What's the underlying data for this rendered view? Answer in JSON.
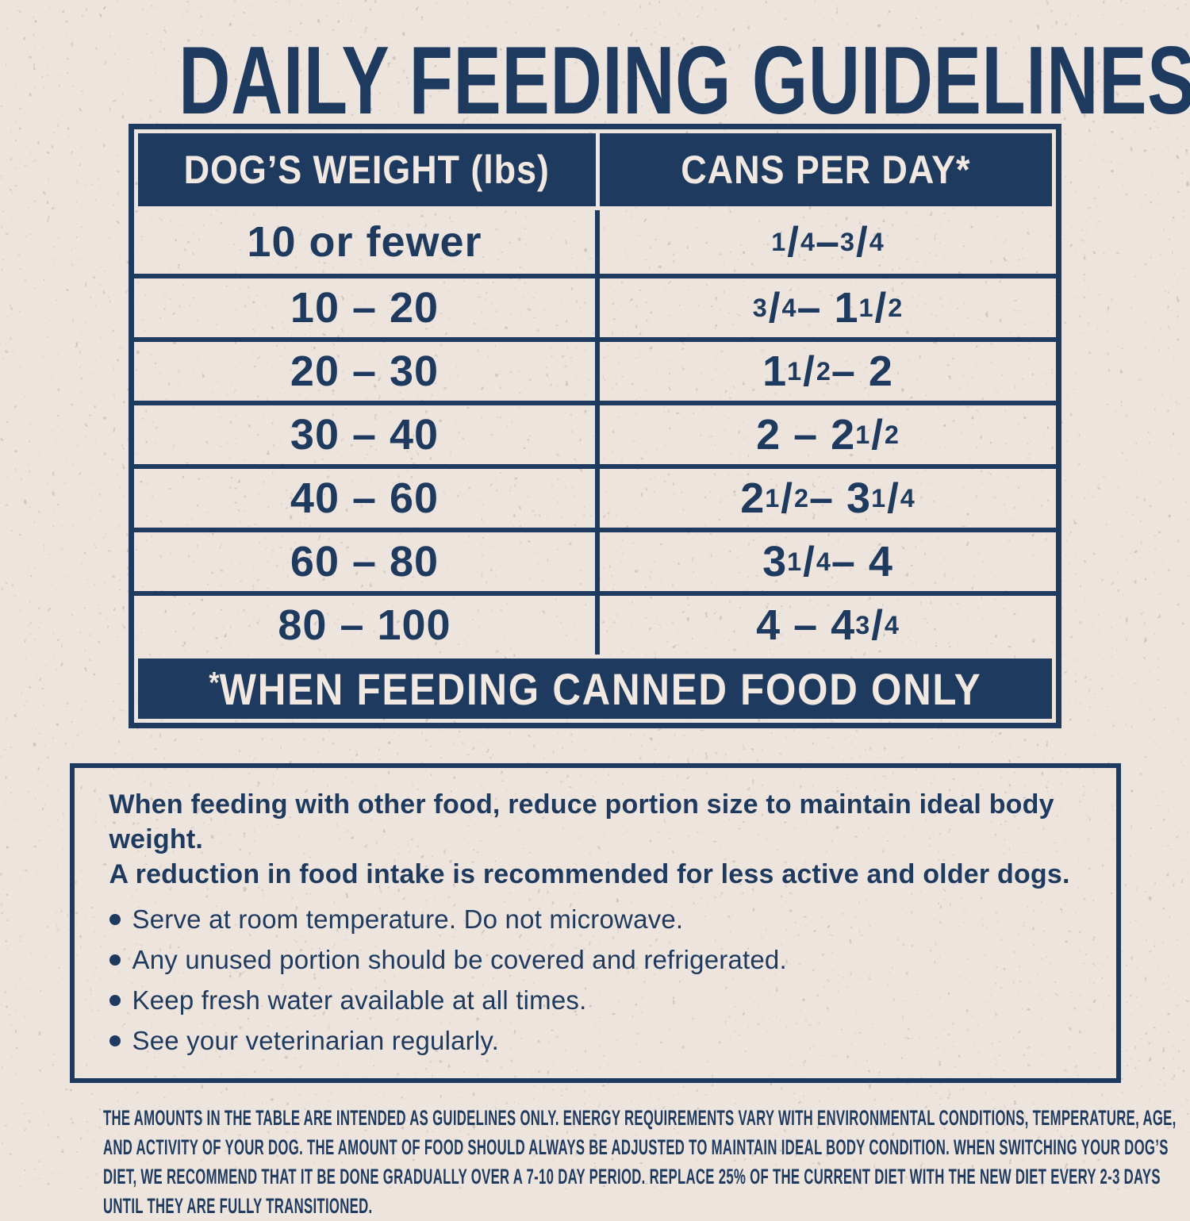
{
  "colors": {
    "navy": "#1E3A5E",
    "cream": "#EEE4DE",
    "text_on_navy": "#F1E8E1"
  },
  "title": "DAILY FEEDING GUIDELINES",
  "table": {
    "headers": [
      "DOG’S WEIGHT (lbs)",
      "CANS PER DAY*"
    ],
    "rows": [
      {
        "weight": "10 or fewer",
        "cans": "1/4 – 3/4"
      },
      {
        "weight": "10 – 20",
        "cans": "3/4 – 1 1/2"
      },
      {
        "weight": "20 – 30",
        "cans": "1 1/2 – 2"
      },
      {
        "weight": "30 – 40",
        "cans": "2 – 2 1/2"
      },
      {
        "weight": "40 – 60",
        "cans": "2 1/2 – 3 1/4"
      },
      {
        "weight": "60 – 80",
        "cans": "3 1/4 – 4"
      },
      {
        "weight": "80 – 100",
        "cans": "4 – 4 3/4"
      }
    ],
    "footnote": "*WHEN FEEDING CANNED FOOD ONLY"
  },
  "notes": {
    "intro_lines": [
      "When feeding with other food, reduce portion size to maintain ideal body weight.",
      "A reduction in food intake is recommended for less active and older dogs."
    ],
    "bullets": [
      "Serve at room temperature. Do not microwave.",
      "Any unused portion should be covered and refrigerated.",
      "Keep fresh water available at all times.",
      "See your veterinarian regularly."
    ]
  },
  "disclaimer_lines": [
    "THE AMOUNTS IN THE TABLE ARE INTENDED AS GUIDELINES ONLY. ENERGY REQUIREMENTS VARY WITH ENVIRONMENTAL CONDITIONS, TEMPERATURE, AGE,",
    "AND ACTIVITY OF YOUR DOG. THE AMOUNT OF FOOD SHOULD ALWAYS BE ADJUSTED TO MAINTAIN IDEAL BODY CONDITION. WHEN SWITCHING YOUR DOG’S",
    "DIET, WE RECOMMEND THAT IT BE DONE GRADUALLY OVER A 7-10 DAY PERIOD. REPLACE 25% OF THE CURRENT DIET WITH THE NEW DIET EVERY 2-3 DAYS",
    "UNTIL THEY ARE FULLY TRANSITIONED."
  ]
}
